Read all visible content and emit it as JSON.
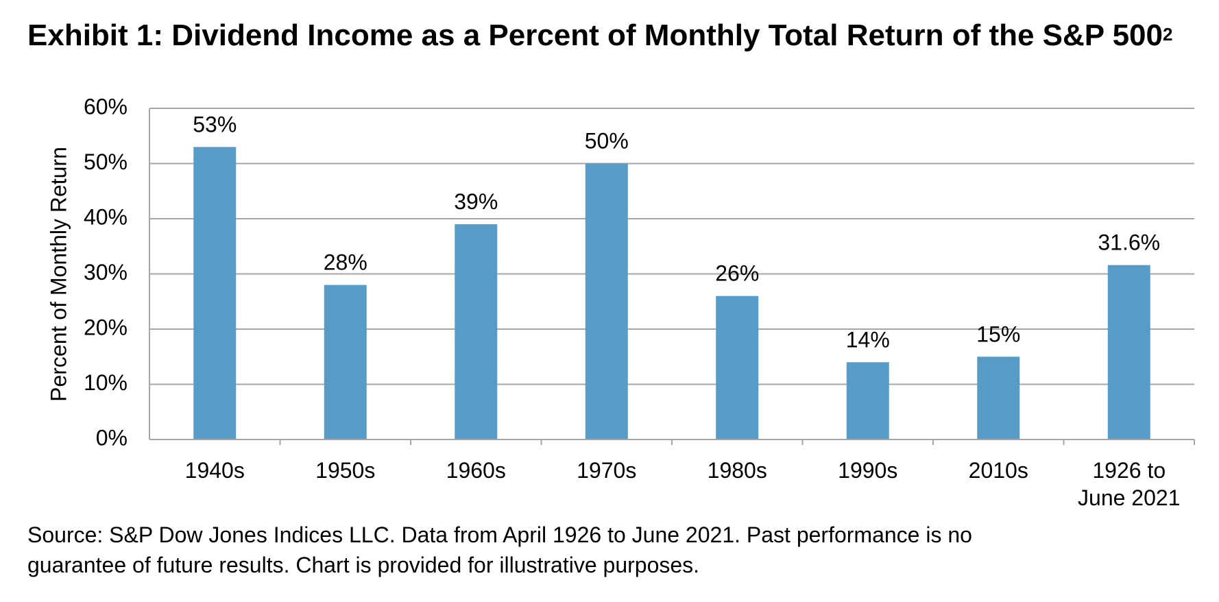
{
  "title": {
    "text": "Exhibit 1: Dividend Income as a Percent of Monthly Total Return of the S&P 500",
    "superscript": "2"
  },
  "source_note": {
    "line1": "Source: S&P Dow Jones Indices LLC.  Data from April 1926 to June 2021.  Past performance is no",
    "line2": "guarantee of future results.  Chart is provided for illustrative purposes."
  },
  "colors": {
    "bar": "#579BC7",
    "grid": "#A6A6A6",
    "text": "#000000"
  },
  "chart_data": {
    "type": "bar",
    "title": "Exhibit 1: Dividend Income as a Percent of Monthly Total Return of the S&P 500",
    "ylabel": "Percent of Monthly Return",
    "xlabel": "",
    "categories": [
      [
        "1940s"
      ],
      [
        "1950s"
      ],
      [
        "1960s"
      ],
      [
        "1970s"
      ],
      [
        "1980s"
      ],
      [
        "1990s"
      ],
      [
        "2010s"
      ],
      [
        "1926 to",
        "June 2021"
      ]
    ],
    "values": [
      53,
      28,
      39,
      50,
      26,
      14,
      15,
      31.6
    ],
    "data_labels": [
      "53%",
      "28%",
      "39%",
      "50%",
      "26%",
      "14%",
      "15%",
      "31.6%"
    ],
    "ylim": [
      0,
      60
    ],
    "yticks": [
      0,
      10,
      20,
      30,
      40,
      50,
      60
    ],
    "ytick_labels": [
      "0%",
      "10%",
      "20%",
      "30%",
      "40%",
      "50%",
      "60%"
    ],
    "grid": true,
    "legend": "none"
  }
}
